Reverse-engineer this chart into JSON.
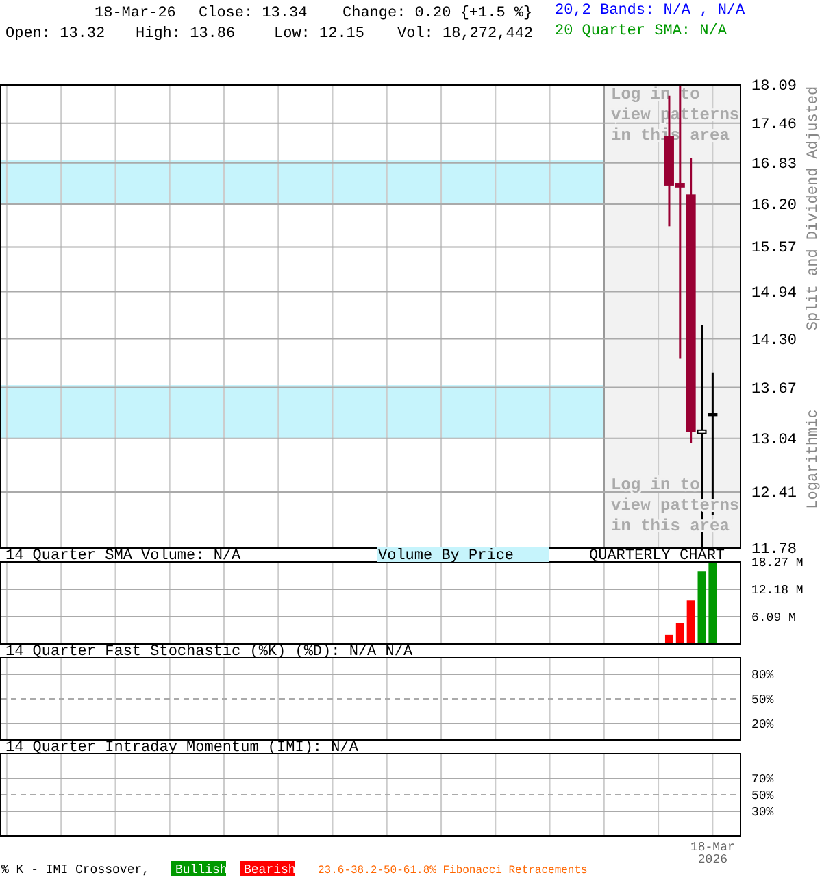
{
  "chart_data": [
    {
      "type": "candlestick",
      "categories": [
        null,
        null,
        null,
        null,
        null,
        null,
        null,
        null,
        null,
        null,
        null,
        null,
        null,
        null,
        null,
        null,
        null,
        null,
        null,
        null,
        null,
        null,
        null,
        null,
        null,
        null,
        null,
        null,
        null,
        null,
        null,
        null,
        null,
        null,
        null,
        null,
        null,
        null,
        null,
        null,
        null,
        null,
        null,
        null,
        null,
        null,
        null,
        null,
        null,
        null,
        null,
        null,
        null,
        null,
        null,
        null,
        null,
        null,
        null,
        null,
        null,
        null,
        null,
        null,
        null,
        null,
        null,
        null
      ],
      "ohlc": [
        null,
        null,
        null,
        null,
        null,
        null,
        null,
        null,
        null,
        null,
        null,
        null,
        null,
        null,
        null,
        null,
        null,
        null,
        null,
        null,
        null,
        null,
        null,
        null,
        null,
        null,
        null,
        null,
        null,
        null,
        null,
        null,
        null,
        null,
        null,
        null,
        null,
        null,
        null,
        null,
        null,
        null,
        null,
        null,
        null,
        null,
        null,
        null,
        null,
        null,
        null,
        null,
        null,
        null,
        null,
        null,
        null,
        null,
        null,
        null,
        null,
        [
          17.24,
          17.91,
          15.87,
          16.49
        ],
        [
          16.51,
          18.09,
          14.04,
          16.46
        ],
        [
          16.34,
          16.91,
          12.99,
          13.13
        ],
        [
          13.1,
          14.48,
          11.78,
          13.14
        ],
        [
          13.32,
          13.86,
          12.15,
          13.34
        ],
        null,
        null
      ],
      "colors": [
        null,
        null,
        null,
        null,
        null,
        null,
        null,
        null,
        null,
        null,
        null,
        null,
        null,
        null,
        null,
        null,
        null,
        null,
        null,
        null,
        null,
        null,
        null,
        null,
        null,
        null,
        null,
        null,
        null,
        null,
        null,
        null,
        null,
        null,
        null,
        null,
        null,
        null,
        null,
        null,
        null,
        null,
        null,
        null,
        null,
        null,
        null,
        null,
        null,
        null,
        null,
        null,
        null,
        null,
        null,
        null,
        null,
        null,
        null,
        null,
        null,
        "#990033",
        "#990033",
        "#990033",
        "#000000",
        "#000000",
        null,
        null
      ],
      "ylim": [
        11.78,
        18.09
      ],
      "log": true,
      "yticks": [
        11.78,
        12.41,
        13.04,
        13.67,
        {
          "value": 14.3,
          "label": "14.30"
        },
        14.94,
        15.57,
        {
          "value": 16.2,
          "label": "16.20"
        },
        16.83,
        17.46,
        18.09
      ],
      "grid": true,
      "tick_labels": "y",
      "ylabel": "Split and Dividend Adjusted",
      "bands": [
        {
          "axis": "y",
          "from": 13.04,
          "to": 13.7,
          "label": null,
          "color": "#c6f4fc"
        },
        {
          "axis": "y",
          "from": 16.22,
          "to": 16.87,
          "label": null,
          "color": "#c6f4fc"
        }
      ],
      "annotations": [
        "18-Mar-26",
        "Close: 13.34",
        "Change: 0.20 {+1.5 %}",
        "Open: 13.32",
        "High: 13.86",
        "Low: 12.15",
        "Vol: 18,272,442",
        "20,2 Bands: N/A , N/A",
        "20 Quarter SMA: N/A",
        "Log in to view patterns in this area",
        "Log in to view patterns in this area",
        "Logarithmic"
      ]
    },
    {
      "type": "bar",
      "title": "14 Quarter SMA Volume: N/A",
      "categories": [
        null,
        null,
        null,
        null,
        null,
        null,
        null,
        null,
        null,
        null,
        null,
        null,
        null,
        null,
        null,
        null,
        null,
        null,
        null,
        null,
        null,
        null,
        null,
        null,
        null,
        null,
        null,
        null,
        null,
        null,
        null,
        null,
        null,
        null,
        null,
        null,
        null,
        null,
        null,
        null,
        null,
        null,
        null,
        null,
        null,
        null,
        null,
        null,
        null,
        null,
        null,
        null,
        null,
        null,
        null,
        null,
        null,
        null,
        null,
        null,
        null,
        null,
        null,
        null,
        null,
        null,
        null,
        null
      ],
      "values": [
        null,
        null,
        null,
        null,
        null,
        null,
        null,
        null,
        null,
        null,
        null,
        null,
        null,
        null,
        null,
        null,
        null,
        null,
        null,
        null,
        null,
        null,
        null,
        null,
        null,
        null,
        null,
        null,
        null,
        null,
        null,
        null,
        null,
        null,
        null,
        null,
        null,
        null,
        null,
        null,
        null,
        null,
        null,
        null,
        null,
        null,
        null,
        null,
        null,
        null,
        null,
        null,
        null,
        null,
        null,
        null,
        null,
        null,
        null,
        null,
        null,
        2.0,
        4.6,
        9.7,
        16.1,
        18.27,
        null,
        null
      ],
      "colors": [
        null,
        null,
        null,
        null,
        null,
        null,
        null,
        null,
        null,
        null,
        null,
        null,
        null,
        null,
        null,
        null,
        null,
        null,
        null,
        null,
        null,
        null,
        null,
        null,
        null,
        null,
        null,
        null,
        null,
        null,
        null,
        null,
        null,
        null,
        null,
        null,
        null,
        null,
        null,
        null,
        null,
        null,
        null,
        null,
        null,
        null,
        null,
        null,
        null,
        null,
        null,
        null,
        null,
        null,
        null,
        null,
        null,
        null,
        null,
        null,
        null,
        "#ff0000",
        "#ff0000",
        "#ff0000",
        "#009900",
        "#009900",
        null,
        null
      ],
      "ylim": [
        0,
        18.27
      ],
      "yticks": [
        {
          "value": 6.09,
          "label": "6.09 M"
        },
        {
          "value": 12.18,
          "label": "12.18 M"
        },
        {
          "value": 18.27,
          "label": "18.27 M"
        }
      ],
      "grid": true,
      "tick_labels": "y",
      "annotations": [
        "Volume By Price",
        "QUARTERLY CHART"
      ]
    },
    {
      "type": "line",
      "title": "14 Quarter Fast Stochastic (%K) (%D): N/A  N/A",
      "categories": [
        null,
        null,
        null,
        null,
        null,
        null,
        null,
        null,
        null,
        null,
        null,
        null,
        null,
        null,
        null,
        null,
        null,
        null,
        null,
        null,
        null,
        null,
        null,
        null,
        null,
        null,
        null,
        null,
        null,
        null,
        null,
        null,
        null,
        null,
        null,
        null,
        null,
        null,
        null,
        null,
        null,
        null,
        null,
        null,
        null,
        null,
        null,
        null,
        null,
        null,
        null,
        null,
        null,
        null,
        null,
        null,
        null,
        null,
        null,
        null,
        null,
        null,
        null,
        null,
        null,
        null,
        null,
        null
      ],
      "ylim": [
        0,
        100
      ],
      "yticks": [
        {
          "value": 20,
          "label": "20%"
        },
        {
          "value": 50,
          "label": "50%"
        },
        {
          "value": 80,
          "label": "80%"
        }
      ],
      "grid": true,
      "tick_labels": "y",
      "ref_lines": [
        {
          "axis": "y",
          "value": 50,
          "label": null,
          "color": "#aaaaaa",
          "line_style": "dashed"
        }
      ]
    },
    {
      "type": "line",
      "title": "14 Quarter Intraday Momentum (IMI): N/A",
      "categories": [
        null,
        null,
        null,
        null,
        null,
        null,
        null,
        null,
        null,
        null,
        null,
        null,
        null,
        null,
        null,
        null,
        null,
        null,
        null,
        null,
        null,
        null,
        null,
        null,
        null,
        null,
        null,
        null,
        null,
        null,
        null,
        null,
        null,
        null,
        null,
        null,
        null,
        null,
        null,
        null,
        null,
        null,
        null,
        null,
        null,
        null,
        null,
        null,
        null,
        null,
        null,
        null,
        null,
        null,
        null,
        null,
        null,
        null,
        null,
        null,
        null,
        null,
        null,
        null,
        null,
        "18-Mar 2026",
        null,
        null
      ],
      "ylim": [
        0,
        100
      ],
      "yticks": [
        {
          "value": 30,
          "label": "30%"
        },
        {
          "value": 50,
          "label": "50%"
        },
        {
          "value": 70,
          "label": "70%"
        }
      ],
      "grid": true,
      "ref_lines": [
        {
          "axis": "y",
          "value": 50,
          "label": null,
          "color": "#aaaaaa",
          "line_style": "dashed"
        }
      ],
      "annotations": [
        "% K - IMI Crossover,",
        "Bullish",
        "Bearish",
        "23.6-38.2-50-61.8% Fibonacci Retracements"
      ]
    }
  ]
}
